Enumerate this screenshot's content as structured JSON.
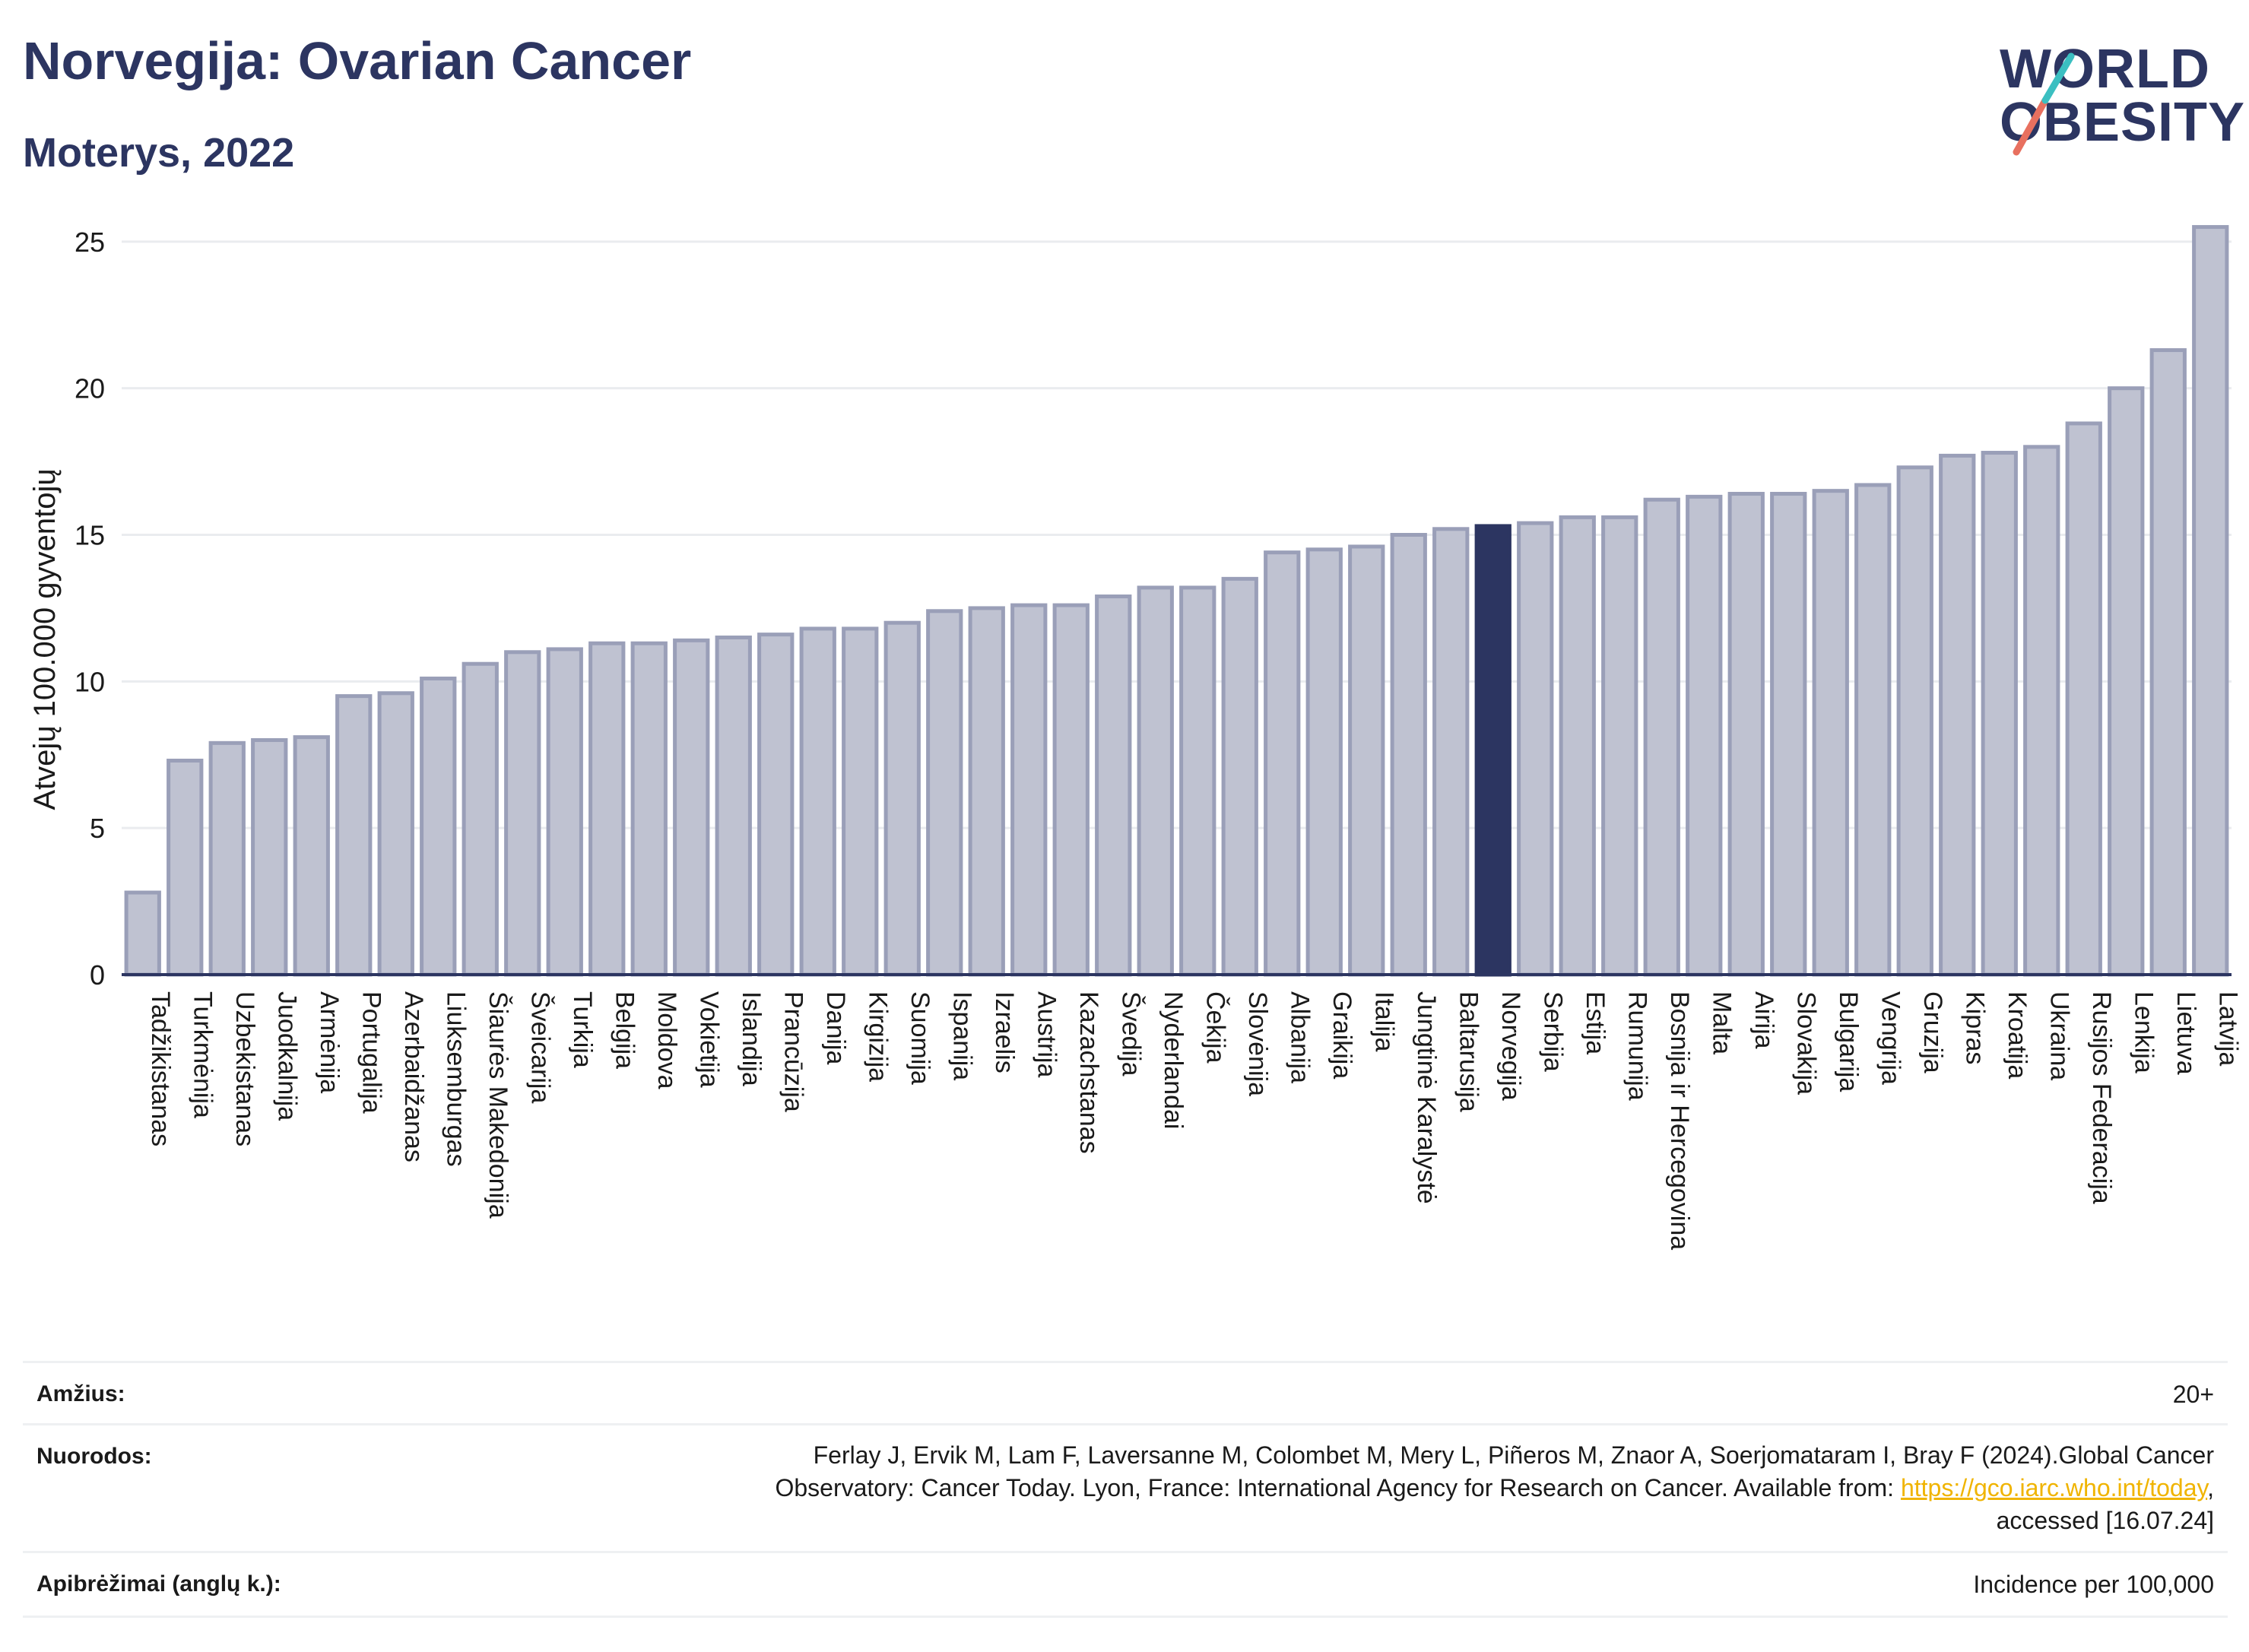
{
  "header": {
    "title": "Norvegija: Ovarian Cancer",
    "subtitle": "Moterys, 2022",
    "logo_line1": "WORLD",
    "logo_line2": "OBESITY"
  },
  "chart_data": {
    "type": "bar",
    "title": "Norvegija: Ovarian Cancer",
    "subtitle": "Moterys, 2022",
    "ylabel": "Atvejų 100.000 gyventojų",
    "ylim": [
      0,
      26.5
    ],
    "yticks": [
      0,
      5,
      10,
      15,
      20,
      25
    ],
    "highlight": "Norvegija",
    "colors": {
      "bar": "#bfc2d1",
      "bar_border": "#9a9fb8",
      "highlight": "#2c3561",
      "grid": "#eaecef",
      "axis": "#2c3561"
    },
    "categories": [
      "Tadžikistanas",
      "Turkmėnija",
      "Uzbekistanas",
      "Juodkalnija",
      "Armėnija",
      "Portugalija",
      "Azerbaidžanas",
      "Liuksemburgas",
      "Šiaurės Makedonija",
      "Šveicarija",
      "Turkija",
      "Belgija",
      "Moldova",
      "Vokietija",
      "Islandija",
      "Prancūzija",
      "Danija",
      "Kirgizija",
      "Suomija",
      "Ispanija",
      "Izraelis",
      "Austrija",
      "Kazachstanas",
      "Švedija",
      "Nyderlandai",
      "Čekija",
      "Slovėnija",
      "Albanija",
      "Graikija",
      "Italija",
      "Jungtinė Karalystė",
      "Baltarusija",
      "Norvegija",
      "Serbija",
      "Estija",
      "Rumunija",
      "Bosnija ir Hercegovina",
      "Malta",
      "Airija",
      "Slovakija",
      "Bulgarija",
      "Vengrija",
      "Gruzija",
      "Kipras",
      "Kroatija",
      "Ukraina",
      "Rusijos Federacija",
      "Lenkija",
      "Lietuva",
      "Latvija"
    ],
    "values": [
      2.8,
      7.3,
      7.9,
      8.0,
      8.1,
      9.5,
      9.6,
      10.1,
      10.6,
      11.0,
      11.1,
      11.3,
      11.3,
      11.4,
      11.5,
      11.6,
      11.8,
      11.8,
      12.0,
      12.4,
      12.5,
      12.6,
      12.6,
      12.9,
      13.2,
      13.2,
      13.5,
      14.4,
      14.5,
      14.6,
      15.0,
      15.2,
      15.3,
      15.4,
      15.6,
      15.6,
      16.2,
      16.3,
      16.4,
      16.4,
      16.5,
      16.7,
      17.3,
      17.7,
      17.8,
      18.0,
      18.8,
      20.0,
      21.3,
      25.5
    ]
  },
  "info": {
    "age_label": "Amžius:",
    "age_value": "20+",
    "refs_label": "Nuorodos:",
    "refs_line1": "Ferlay J, Ervik M, Lam F, Laversanne M, Colombet M, Mery L, Piñeros M, Znaor A, Soerjomataram I, Bray F (2024).Global Cancer",
    "refs_line2_pre": "Observatory: Cancer Today. Lyon, France: International Agency for Research on Cancer. Available from: ",
    "refs_link": "https://gco.iarc.who.int/today",
    "refs_line2_post": ",",
    "refs_line3": "accessed [16.07.24]",
    "def_label": "Apibrėžimai (anglų k.):",
    "def_value": "Incidence per 100,000"
  }
}
